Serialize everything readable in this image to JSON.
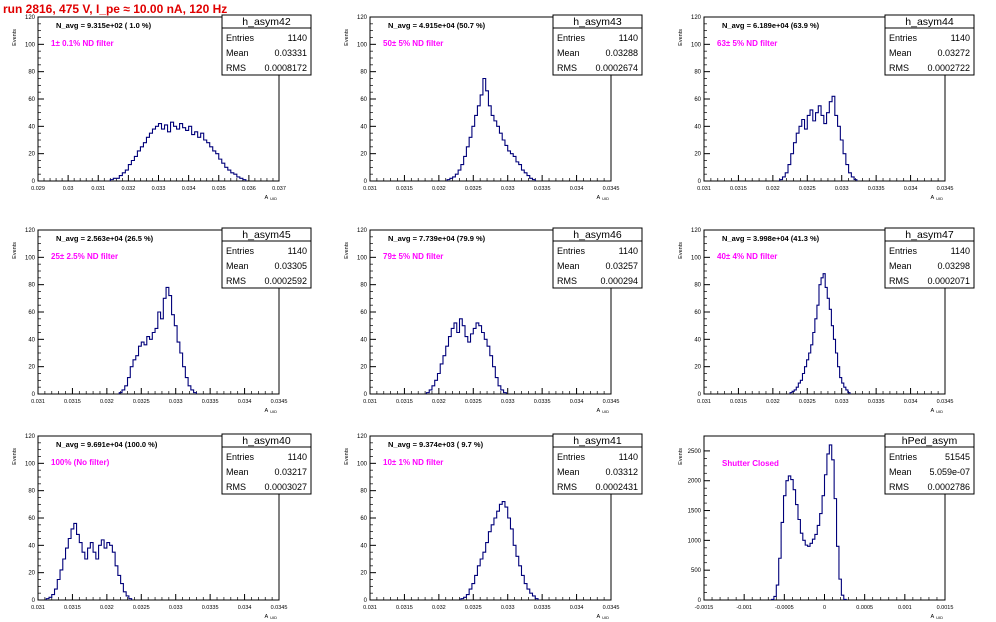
{
  "page": {
    "run_title": "run 2816,   475 V, I_pe ≈ 10.00 nA, 120 Hz"
  },
  "style": {
    "hist_color": "#00007a",
    "annotation_color": "#ff00ff",
    "title_color": "#e00000"
  },
  "chart_data": [
    {
      "type": "histogram",
      "name": "h_asym42",
      "navg": "N_avg = 9.315e+02 ( 1.0 %)",
      "filter": "1± 0.1% ND filter",
      "stats": {
        "entries": "1140",
        "mean": "0.03331",
        "rms": "0.0008172"
      },
      "xlabel": "A_UID",
      "ylabel": "Events",
      "xlim": [
        0.029,
        0.037
      ],
      "ylim": [
        0,
        120
      ],
      "xticks": [
        0.029,
        0.03,
        0.031,
        0.032,
        0.033,
        0.034,
        0.035,
        0.036,
        0.037
      ],
      "xticklabels": [
        "0.029",
        "0.03",
        "0.031",
        "0.032",
        "0.033",
        "0.034",
        "0.035",
        "0.036",
        "0.037"
      ],
      "yticks": [
        0,
        20,
        40,
        60,
        80,
        100,
        120
      ],
      "bin_width": 0.0001,
      "first_bin": 0.0314,
      "counts": [
        1,
        2,
        2,
        4,
        6,
        8,
        12,
        15,
        18,
        22,
        25,
        28,
        32,
        35,
        38,
        40,
        42,
        38,
        41,
        36,
        43,
        40,
        38,
        42,
        39,
        37,
        40,
        34,
        36,
        32,
        35,
        30,
        28,
        25,
        22,
        20,
        16,
        13,
        10,
        8,
        6,
        5,
        3,
        2,
        1
      ]
    },
    {
      "type": "histogram",
      "name": "h_asym43",
      "navg": "N_avg = 4.915e+04 (50.7 %)",
      "filter": "50± 5% ND filter",
      "stats": {
        "entries": "1140",
        "mean": "0.03288",
        "rms": "0.0002674"
      },
      "xlabel": "A_UID",
      "ylabel": "Events",
      "xlim": [
        0.031,
        0.0345
      ],
      "ylim": [
        0,
        120
      ],
      "xticks": [
        0.031,
        0.0315,
        0.032,
        0.0325,
        0.033,
        0.0335,
        0.034,
        0.0345
      ],
      "xticklabels": [
        "0.031",
        "0.0315",
        "0.032",
        "0.0325",
        "0.033",
        "0.0335",
        "0.034",
        "0.0345"
      ],
      "yticks": [
        0,
        20,
        40,
        60,
        80,
        100,
        120
      ],
      "bin_width": 4e-05,
      "first_bin": 0.03212,
      "counts": [
        1,
        2,
        3,
        5,
        8,
        12,
        18,
        25,
        32,
        40,
        48,
        55,
        63,
        75,
        66,
        55,
        48,
        44,
        40,
        35,
        30,
        26,
        22,
        20,
        18,
        14,
        12,
        8,
        6,
        4,
        2,
        1
      ]
    },
    {
      "type": "histogram",
      "name": "h_asym44",
      "navg": "N_avg = 6.189e+04 (63.9 %)",
      "filter": "63± 5% ND filter",
      "stats": {
        "entries": "1140",
        "mean": "0.03272",
        "rms": "0.0002722"
      },
      "xlabel": "A_UID",
      "ylabel": "Events",
      "xlim": [
        0.031,
        0.0345
      ],
      "ylim": [
        0,
        120
      ],
      "xticks": [
        0.031,
        0.0315,
        0.032,
        0.0325,
        0.033,
        0.0335,
        0.034,
        0.0345
      ],
      "xticklabels": [
        "0.031",
        "0.0315",
        "0.032",
        "0.0325",
        "0.033",
        "0.0335",
        "0.034",
        "0.0345"
      ],
      "yticks": [
        0,
        20,
        40,
        60,
        80,
        100,
        120
      ],
      "bin_width": 4e-05,
      "first_bin": 0.0321,
      "counts": [
        1,
        3,
        6,
        12,
        20,
        28,
        35,
        40,
        45,
        38,
        48,
        52,
        44,
        50,
        55,
        48,
        42,
        50,
        58,
        62,
        48,
        40,
        30,
        20,
        12,
        6,
        3,
        1
      ]
    },
    {
      "type": "histogram",
      "name": "h_asym45",
      "navg": "N_avg = 2.563e+04 (26.5 %)",
      "filter": "25± 2.5% ND filter",
      "stats": {
        "entries": "1140",
        "mean": "0.03305",
        "rms": "0.0002592"
      },
      "xlabel": "A_UID",
      "ylabel": "Events",
      "xlim": [
        0.031,
        0.0345
      ],
      "ylim": [
        0,
        120
      ],
      "xticks": [
        0.031,
        0.0315,
        0.032,
        0.0325,
        0.033,
        0.0335,
        0.034,
        0.0345
      ],
      "xticklabels": [
        "0.031",
        "0.0315",
        "0.032",
        "0.0325",
        "0.033",
        "0.0335",
        "0.034",
        "0.0345"
      ],
      "yticks": [
        0,
        20,
        40,
        60,
        80,
        100,
        120
      ],
      "bin_width": 4e-05,
      "first_bin": 0.03218,
      "counts": [
        1,
        3,
        6,
        12,
        20,
        25,
        28,
        35,
        38,
        36,
        42,
        40,
        45,
        48,
        60,
        55,
        70,
        78,
        72,
        58,
        50,
        38,
        30,
        20,
        12,
        6,
        3,
        1
      ]
    },
    {
      "type": "histogram",
      "name": "h_asym46",
      "navg": "N_avg = 7.739e+04 (79.9 %)",
      "filter": "79± 5% ND filter",
      "stats": {
        "entries": "1140",
        "mean": "0.03257",
        "rms": "0.000294"
      },
      "xlabel": "A_UID",
      "ylabel": "Events",
      "xlim": [
        0.031,
        0.0345
      ],
      "ylim": [
        0,
        120
      ],
      "xticks": [
        0.031,
        0.0315,
        0.032,
        0.0325,
        0.033,
        0.0335,
        0.034,
        0.0345
      ],
      "xticklabels": [
        "0.031",
        "0.0315",
        "0.032",
        "0.0325",
        "0.033",
        "0.0335",
        "0.034",
        "0.0345"
      ],
      "yticks": [
        0,
        20,
        40,
        60,
        80,
        100,
        120
      ],
      "bin_width": 4e-05,
      "first_bin": 0.03182,
      "counts": [
        1,
        3,
        6,
        10,
        15,
        22,
        28,
        35,
        42,
        48,
        52,
        45,
        55,
        50,
        42,
        38,
        44,
        48,
        52,
        50,
        45,
        40,
        35,
        28,
        20,
        12,
        6,
        3,
        1
      ]
    },
    {
      "type": "histogram",
      "name": "h_asym47",
      "navg": "N_avg = 3.998e+04 (41.3 %)",
      "filter": "40± 4% ND filter",
      "stats": {
        "entries": "1140",
        "mean": "0.03298",
        "rms": "0.0002071"
      },
      "xlabel": "A_UID",
      "ylabel": "Events",
      "xlim": [
        0.031,
        0.0345
      ],
      "ylim": [
        0,
        120
      ],
      "xticks": [
        0.031,
        0.0315,
        0.032,
        0.0325,
        0.033,
        0.0335,
        0.034,
        0.0345
      ],
      "xticklabels": [
        "0.031",
        "0.0315",
        "0.032",
        "0.0325",
        "0.033",
        "0.0335",
        "0.034",
        "0.0345"
      ],
      "yticks": [
        0,
        20,
        40,
        60,
        80,
        100,
        120
      ],
      "bin_width": 3e-05,
      "first_bin": 0.03225,
      "counts": [
        1,
        2,
        3,
        5,
        8,
        10,
        15,
        20,
        25,
        30,
        36,
        45,
        55,
        65,
        80,
        85,
        88,
        78,
        70,
        62,
        50,
        40,
        30,
        20,
        12,
        8,
        5,
        3,
        1
      ]
    },
    {
      "type": "histogram",
      "name": "h_asym40",
      "navg": "N_avg = 9.691e+04 (100.0 %)",
      "filter": "100% (No filter)",
      "stats": {
        "entries": "1140",
        "mean": "0.03217",
        "rms": "0.0003027"
      },
      "xlabel": "A_UID",
      "ylabel": "Events",
      "xlim": [
        0.031,
        0.0345
      ],
      "ylim": [
        0,
        120
      ],
      "xticks": [
        0.031,
        0.0315,
        0.032,
        0.0325,
        0.033,
        0.0335,
        0.034,
        0.0345
      ],
      "xticklabels": [
        "0.031",
        "0.0315",
        "0.032",
        "0.0325",
        "0.033",
        "0.0335",
        "0.034",
        "0.0345"
      ],
      "yticks": [
        0,
        20,
        40,
        60,
        80,
        100,
        120
      ],
      "bin_width": 4e-05,
      "first_bin": 0.03112,
      "counts": [
        1,
        2,
        4,
        8,
        15,
        22,
        30,
        38,
        45,
        52,
        56,
        48,
        42,
        35,
        30,
        38,
        42,
        35,
        30,
        40,
        44,
        38,
        42,
        40,
        35,
        25,
        18,
        12,
        6,
        3,
        1
      ]
    },
    {
      "type": "histogram",
      "name": "h_asym41",
      "navg": "N_avg = 9.374e+03 ( 9.7 %)",
      "filter": "10± 1% ND filter",
      "stats": {
        "entries": "1140",
        "mean": "0.03312",
        "rms": "0.0002431"
      },
      "xlabel": "A_UID",
      "ylabel": "Events",
      "xlim": [
        0.031,
        0.0345
      ],
      "ylim": [
        0,
        120
      ],
      "xticks": [
        0.031,
        0.0315,
        0.032,
        0.0325,
        0.033,
        0.0335,
        0.034,
        0.0345
      ],
      "xticklabels": [
        "0.031",
        "0.0315",
        "0.032",
        "0.0325",
        "0.033",
        "0.0335",
        "0.034",
        "0.0345"
      ],
      "yticks": [
        0,
        20,
        40,
        60,
        80,
        100,
        120
      ],
      "bin_width": 4e-05,
      "first_bin": 0.03232,
      "counts": [
        1,
        2,
        4,
        8,
        12,
        18,
        25,
        30,
        35,
        42,
        50,
        55,
        60,
        65,
        70,
        72,
        68,
        60,
        52,
        40,
        32,
        25,
        18,
        12,
        8,
        5,
        3,
        1
      ]
    },
    {
      "type": "histogram",
      "name": "hPed_asym",
      "navg": "",
      "filter": "Shutter Closed",
      "stats": {
        "entries": "51545",
        "mean": "5.059e-07",
        "rms": "0.0002786"
      },
      "xlabel": "A_UID",
      "ylabel": "Events",
      "xlim": [
        -0.0015,
        0.0015
      ],
      "ylim": [
        0,
        2750
      ],
      "xticks": [
        -0.0015,
        -0.001,
        -0.0005,
        0,
        0.0005,
        0.001,
        0.0015
      ],
      "xticklabels": [
        "-0.0015",
        "-0.001",
        "-0.0005",
        "0",
        "0.0005",
        "0.001",
        "0.0015"
      ],
      "yticks": [
        0,
        500,
        1000,
        1500,
        2000,
        2500
      ],
      "bin_width": 3e-05,
      "first_bin": -0.00066,
      "counts": [
        10,
        60,
        250,
        700,
        1300,
        1750,
        2000,
        2080,
        2020,
        1850,
        1600,
        1350,
        1120,
        1000,
        920,
        900,
        950,
        1020,
        1100,
        1250,
        1450,
        1750,
        2100,
        2450,
        2600,
        2350,
        1700,
        900,
        350,
        80,
        10
      ]
    }
  ]
}
